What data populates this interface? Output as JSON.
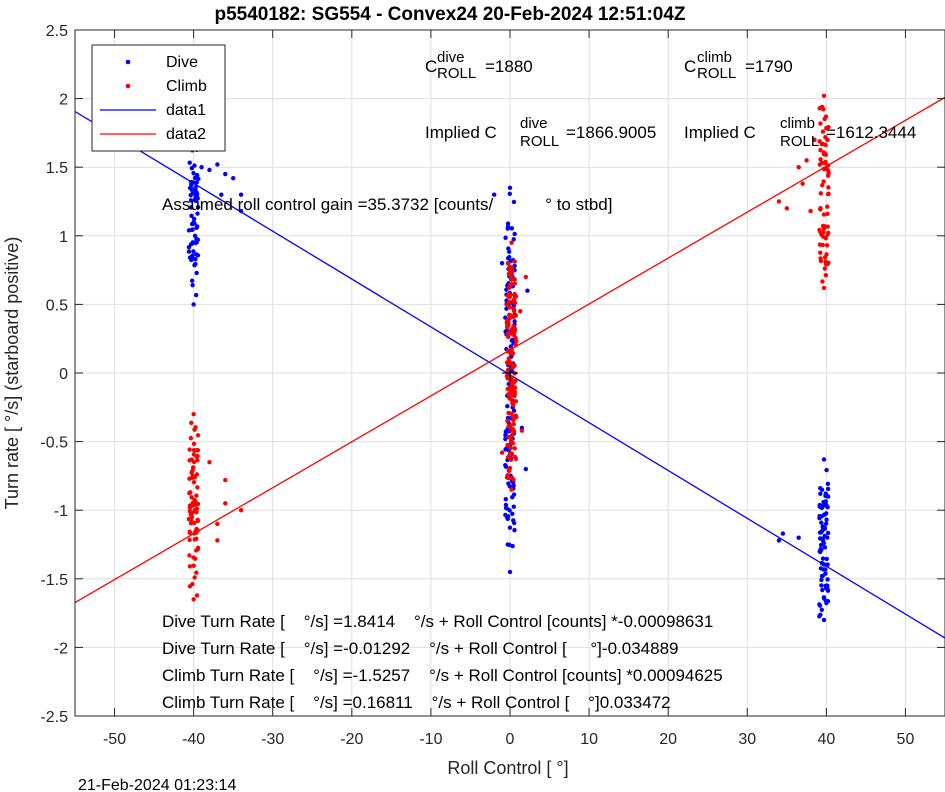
{
  "chart_data": {
    "type": "scatter",
    "title": "p5540182: SG554 - Convex24 20-Feb-2024 12:51:04Z",
    "xlabel": "Roll Control [   °]",
    "ylabel": "Turn rate [   °/s] (starboard positive)",
    "xlim": [
      -55,
      55
    ],
    "ylim": [
      -2.5,
      2.5
    ],
    "x_ticks": [
      -50,
      -40,
      -30,
      -20,
      -10,
      0,
      10,
      20,
      30,
      40,
      50
    ],
    "y_ticks": [
      -2.5,
      -2,
      -1.5,
      -1,
      -0.5,
      0,
      0.5,
      1,
      1.5,
      2,
      2.5
    ],
    "grid": true,
    "legend_position": "top-left",
    "series": [
      {
        "name": "Dive",
        "kind": "points",
        "color": "#0000ff"
      },
      {
        "name": "Climb",
        "kind": "points",
        "color": "#ff0000"
      },
      {
        "name": "data1",
        "kind": "line",
        "color": "#0000ff",
        "slope": -0.034889,
        "intercept": -0.01292
      },
      {
        "name": "data2",
        "kind": "line",
        "color": "#ff0000",
        "slope": 0.033472,
        "intercept": 0.16811
      }
    ],
    "clusters": [
      {
        "series": "Dive",
        "x_center": -40,
        "x_spread": 0.6,
        "y_min": 0.5,
        "y_max": 1.85,
        "n": 70
      },
      {
        "series": "Dive",
        "x_center": 0,
        "x_spread": 0.6,
        "y_min": -1.45,
        "y_max": 1.35,
        "n": 140
      },
      {
        "series": "Dive",
        "x_center": 39.7,
        "x_spread": 0.6,
        "y_min": -1.8,
        "y_max": -0.63,
        "n": 80
      },
      {
        "series": "Climb",
        "x_center": -40,
        "x_spread": 0.6,
        "y_min": -1.65,
        "y_max": -0.3,
        "n": 80
      },
      {
        "series": "Climb",
        "x_center": 0.2,
        "x_spread": 0.6,
        "y_min": -0.85,
        "y_max": 0.95,
        "n": 150
      },
      {
        "series": "Climb",
        "x_center": 39.7,
        "x_spread": 0.6,
        "y_min": 0.62,
        "y_max": 2.02,
        "n": 70
      }
    ],
    "outliers": {
      "dive": [
        [
          -37,
          1.52
        ],
        [
          -36,
          1.45
        ],
        [
          -35,
          1.42
        ],
        [
          -34,
          1.3
        ],
        [
          -34,
          1.18
        ],
        [
          -36.5,
          1.3
        ],
        [
          -38,
          1.48
        ],
        [
          -39,
          1.5
        ],
        [
          34.5,
          -1.17
        ],
        [
          34,
          -1.22
        ],
        [
          36.5,
          -1.2
        ],
        [
          -2,
          1.3
        ],
        [
          -1,
          0.8
        ],
        [
          1.5,
          -0.4
        ],
        [
          2,
          -0.7
        ],
        [
          2.2,
          0.6
        ]
      ],
      "climb": [
        [
          -34,
          -1.0
        ],
        [
          -36,
          -0.95
        ],
        [
          -37,
          -1.1
        ],
        [
          -37,
          -1.22
        ],
        [
          -38,
          -0.65
        ],
        [
          -36,
          -0.78
        ],
        [
          34,
          1.25
        ],
        [
          35,
          1.2
        ],
        [
          36.5,
          1.5
        ],
        [
          37,
          1.38
        ],
        [
          37.5,
          1.55
        ],
        [
          38,
          1.18
        ],
        [
          38.5,
          1.7
        ],
        [
          2,
          0.7
        ],
        [
          1.5,
          -0.42
        ],
        [
          -1,
          -0.58
        ],
        [
          1.3,
          0.45
        ]
      ]
    },
    "annotations": {
      "c_dive_base": "C",
      "c_dive_sup": "dive",
      "c_dive_sub": "ROLL",
      "c_dive_val": "=1880",
      "c_climb_base": "C",
      "c_climb_sup": "climb",
      "c_climb_sub": "ROLL",
      "c_climb_val": "=1790",
      "implied_dive_prefix": "Implied C",
      "implied_dive_sup": "dive",
      "implied_dive_sub": "ROLL",
      "implied_dive_val": "=1866.9005",
      "implied_climb_prefix": "Implied C",
      "implied_climb_sup": "climb",
      "implied_climb_sub": "ROLL",
      "implied_climb_val": "=1612.3444",
      "gain": "Assumed roll control gain =35.3732 [counts/           ° to stbd]",
      "eq1": "Dive Turn Rate [    °/s] =1.8414    °/s + Roll Control [counts] *-0.00098631",
      "eq2": "Dive Turn Rate [    °/s] =-0.01292    °/s + Roll Control [     °]-0.034889",
      "eq3": "Climb Turn Rate [    °/s] =-1.5257    °/s + Roll Control [counts] *0.00094625",
      "eq4": "Climb Turn Rate [    °/s] =0.16811    °/s + Roll Control [    °]0.033472"
    },
    "footer": "21-Feb-2024 01:23:14"
  }
}
